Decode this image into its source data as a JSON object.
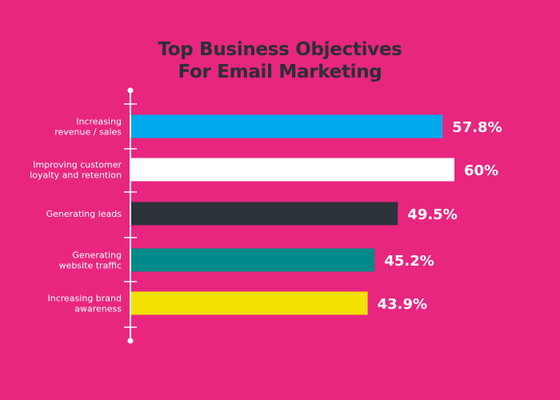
{
  "chart_data": {
    "type": "bar",
    "orientation": "horizontal",
    "title": [
      "Top Business Objectives",
      "For Email Marketing"
    ],
    "categories": [
      [
        "Increasing",
        "revenue / sales"
      ],
      [
        "Improving customer",
        "loyalty and retention"
      ],
      [
        "Generating leads"
      ],
      [
        "Generating",
        "website traffic"
      ],
      [
        "Increasing brand",
        "awareness"
      ]
    ],
    "values": [
      57.8,
      60,
      49.5,
      45.2,
      43.9
    ],
    "value_labels": [
      "57.8%",
      "60%",
      "49.5%",
      "45.2%",
      "43.9%"
    ],
    "colors": [
      "#00A9EE",
      "#FFFFFF",
      "#2C333B",
      "#00898A",
      "#F2E100"
    ],
    "xlim": [
      0,
      60
    ],
    "grid": false,
    "legend": "none"
  },
  "colors": {
    "background": "#E8267F",
    "title": "#2B2F36",
    "axis": "#FFFFFF"
  }
}
